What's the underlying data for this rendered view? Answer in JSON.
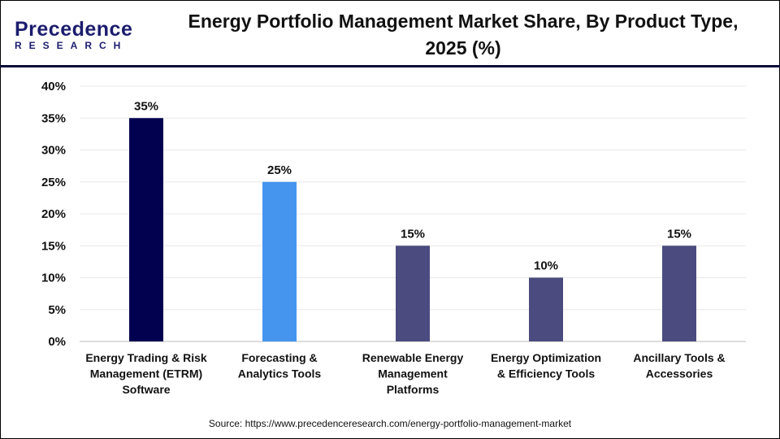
{
  "logo": {
    "line1": "Precedence",
    "line2": "RESEARCH"
  },
  "title": "Energy Portfolio Management Market Share, By Product Type, 2025 (%)",
  "source": "Source: https://www.precedenceresearch.com/energy-portfolio-management-market",
  "chart_data": {
    "type": "bar",
    "title": "Energy Portfolio Management Market Share, By Product Type, 2025 (%)",
    "categories": [
      [
        "Energy Trading & Risk",
        "Management (ETRM)",
        "Software"
      ],
      [
        "Forecasting &",
        "Analytics Tools"
      ],
      [
        "Renewable Energy",
        "Management",
        "Platforms"
      ],
      [
        "Energy Optimization",
        "& Efficiency Tools"
      ],
      [
        "Ancillary Tools &",
        "Accessories"
      ]
    ],
    "values": [
      35,
      25,
      15,
      10,
      15
    ],
    "data_labels": [
      "35%",
      "25%",
      "15%",
      "10%",
      "15%"
    ],
    "colors": [
      "#01014f",
      "#4595ef",
      "#4b4b80",
      "#4b4b80",
      "#4b4b80"
    ],
    "ylim": [
      0,
      40
    ],
    "yticks": [
      "0%",
      "5%",
      "10%",
      "15%",
      "20%",
      "25%",
      "30%",
      "35%",
      "40%"
    ],
    "grid": true,
    "xlabel": "",
    "ylabel": ""
  }
}
